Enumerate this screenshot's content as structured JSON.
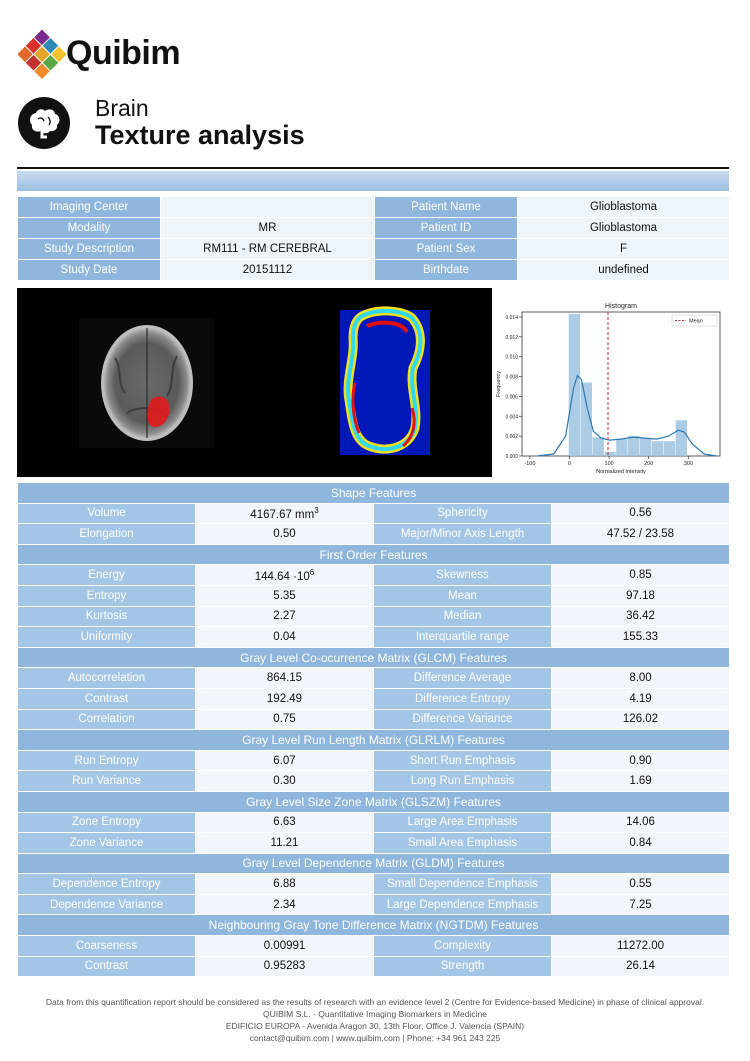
{
  "brand": {
    "name": "Quibim"
  },
  "report": {
    "organ": "Brain",
    "title": "Texture analysis"
  },
  "info": [
    [
      {
        "label": "Imaging Center",
        "value": ""
      },
      {
        "label": "Patient Name",
        "value": "Glioblastoma"
      }
    ],
    [
      {
        "label": "Modality",
        "value": "MR"
      },
      {
        "label": "Patient ID",
        "value": "Glioblastoma"
      }
    ],
    [
      {
        "label": "Study Description",
        "value": "RM111 - RM CEREBRAL"
      },
      {
        "label": "Patient Sex",
        "value": "F"
      }
    ],
    [
      {
        "label": "Study Date",
        "value": "20151112"
      },
      {
        "label": "Birthdate",
        "value": "undefined"
      }
    ]
  ],
  "chart_data": {
    "type": "bar",
    "title": "Histogram",
    "xlabel": "Normalized Intensity",
    "ylabel": "Frequency",
    "xlim": [
      -120,
      380
    ],
    "ylim": [
      0,
      0.0145
    ],
    "x_ticks": [
      -100,
      0,
      100,
      200,
      300
    ],
    "y_ticks": [
      0.0,
      0.002,
      0.004,
      0.006,
      0.008,
      0.01,
      0.012,
      0.014
    ],
    "bins": [
      {
        "x0": -2,
        "x1": 28,
        "value": 0.0143
      },
      {
        "x0": 28,
        "x1": 58,
        "value": 0.0074
      },
      {
        "x0": 58,
        "x1": 88,
        "value": 0.0019
      },
      {
        "x0": 88,
        "x1": 118,
        "value": 0.0004
      },
      {
        "x0": 118,
        "x1": 148,
        "value": 0.0017
      },
      {
        "x0": 148,
        "x1": 178,
        "value": 0.002
      },
      {
        "x0": 178,
        "x1": 208,
        "value": 0.0018
      },
      {
        "x0": 208,
        "x1": 238,
        "value": 0.0015
      },
      {
        "x0": 238,
        "x1": 268,
        "value": 0.0015
      },
      {
        "x0": 268,
        "x1": 298,
        "value": 0.0036
      }
    ],
    "kde": [
      [
        -80,
        1e-05
      ],
      [
        -40,
        0.0002
      ],
      [
        -10,
        0.002
      ],
      [
        10,
        0.0068
      ],
      [
        20,
        0.0081
      ],
      [
        30,
        0.0077
      ],
      [
        45,
        0.0048
      ],
      [
        60,
        0.0025
      ],
      [
        80,
        0.0018
      ],
      [
        100,
        0.0016
      ],
      [
        130,
        0.0017
      ],
      [
        160,
        0.0019
      ],
      [
        190,
        0.0018
      ],
      [
        220,
        0.0017
      ],
      [
        250,
        0.002
      ],
      [
        275,
        0.0026
      ],
      [
        290,
        0.0024
      ],
      [
        310,
        0.0012
      ],
      [
        340,
        0.0002
      ],
      [
        370,
        1e-05
      ]
    ],
    "mean": {
      "name": "Mean",
      "x": 97.18
    },
    "legend": "top-right"
  },
  "sections": [
    {
      "title": "Shape Features",
      "rows": [
        [
          {
            "label": "Volume",
            "value": "4167.67 mm",
            "sup": "3"
          },
          {
            "label": "Sphericity",
            "value": "0.56"
          }
        ],
        [
          {
            "label": "Elongation",
            "value": "0.50"
          },
          {
            "label": "Major/Minor Axis Length",
            "value": "47.52 / 23.58"
          }
        ]
      ]
    },
    {
      "title": "First Order Features",
      "rows": [
        [
          {
            "label": "Energy",
            "value": "144.64 ·10",
            "sup": "6"
          },
          {
            "label": "Skewness",
            "value": "0.85"
          }
        ],
        [
          {
            "label": "Entropy",
            "value": "5.35"
          },
          {
            "label": "Mean",
            "value": "97.18"
          }
        ],
        [
          {
            "label": "Kurtosis",
            "value": "2.27"
          },
          {
            "label": "Median",
            "value": "36.42"
          }
        ],
        [
          {
            "label": "Uniformity",
            "value": "0.04"
          },
          {
            "label": "Interquartile range",
            "value": "155.33"
          }
        ]
      ]
    },
    {
      "title": "Gray Level Co-ocurrence Matrix (GLCM) Features",
      "rows": [
        [
          {
            "label": "Autocorrelation",
            "value": "864.15"
          },
          {
            "label": "Difference Average",
            "value": "8.00"
          }
        ],
        [
          {
            "label": "Contrast",
            "value": "192.49"
          },
          {
            "label": "Difference Entropy",
            "value": "4.19"
          }
        ],
        [
          {
            "label": "Correlation",
            "value": "0.75"
          },
          {
            "label": "Difference Variance",
            "value": "126.02"
          }
        ]
      ]
    },
    {
      "title": "Gray Level Run Length Matrix (GLRLM) Features",
      "rows": [
        [
          {
            "label": "Run Entropy",
            "value": "6.07"
          },
          {
            "label": "Short Run Emphasis",
            "value": "0.90"
          }
        ],
        [
          {
            "label": "Run Variance",
            "value": "0.30"
          },
          {
            "label": "Long Run Emphasis",
            "value": "1.69"
          }
        ]
      ]
    },
    {
      "title": "Gray Level Size Zone Matrix (GLSZM) Features",
      "rows": [
        [
          {
            "label": "Zone Entropy",
            "value": "6.63"
          },
          {
            "label": "Large Area Emphasis",
            "value": "14.06"
          }
        ],
        [
          {
            "label": "Zone Variance",
            "value": "11.21"
          },
          {
            "label": "Small Area Emphasis",
            "value": "0.84"
          }
        ]
      ]
    },
    {
      "title": "Gray Level Dependence Matrix (GLDM) Features",
      "rows": [
        [
          {
            "label": "Dependence Entropy",
            "value": "6.88"
          },
          {
            "label": "Small Dependence Emphasis",
            "value": "0.55"
          }
        ],
        [
          {
            "label": "Dependence Variance",
            "value": "2.34"
          },
          {
            "label": "Large Dependence Emphasis",
            "value": "7.25"
          }
        ]
      ]
    },
    {
      "title": "Neighbouring Gray Tone Difference Matrix (NGTDM) Features",
      "rows": [
        [
          {
            "label": "Coarseness",
            "value": "0.00991"
          },
          {
            "label": "Complexity",
            "value": "11272.00"
          }
        ],
        [
          {
            "label": "Contrast",
            "value": "0.95283"
          },
          {
            "label": "Strength",
            "value": "26.14"
          }
        ]
      ]
    }
  ],
  "footer": {
    "disclaimer": "Data from this quantification report should be considered as the results of research with an evidence level 2 (Centre for Evidence-based Medicine) in phase of clinical approval.",
    "company": "QUIBIM S.L. - Quantitative Imaging Biomarkers in Medicine",
    "address": "EDIFICIO EUROPA - Avenida Aragon 30, 13th Floor, Office J. Valencia (SPAIN)",
    "contact": "contact@quibim.com  |  www.quibim.com  |   Phone: +34 961 243 225"
  }
}
